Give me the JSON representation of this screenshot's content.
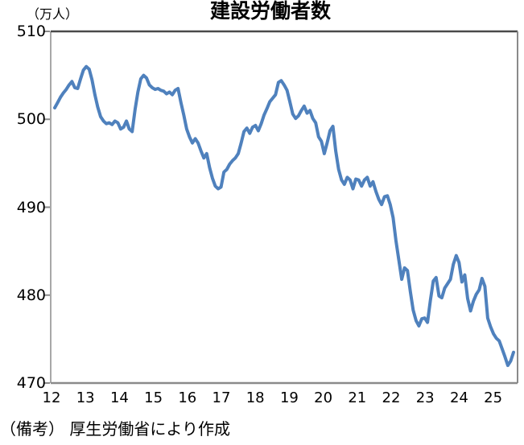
{
  "title": "建設労働者数",
  "y_axis_unit_label": "（万人）",
  "note": "（備考） 厚生労働省により作成",
  "colors": {
    "line": "#4f81bd",
    "axis": "#8a8a8a",
    "axis_left": "#a8a8a8",
    "border_top": "#4a4a4a",
    "text": "#000000"
  },
  "chart_data": {
    "type": "line",
    "title": "建設労働者数",
    "ylabel": "（万人）",
    "xlabel": "",
    "ylim": [
      470,
      510
    ],
    "y_ticks": [
      510,
      500,
      490,
      480,
      470
    ],
    "x_tick_labels": [
      "12",
      "13",
      "14",
      "15",
      "16",
      "17",
      "18",
      "19",
      "20",
      "21",
      "22",
      "23",
      "24",
      "25"
    ],
    "x_start": "2012-01",
    "x_end": "2025-05",
    "frequency": "monthly",
    "grid": false,
    "legend_position": "none",
    "series": [
      {
        "name": "建設労働者数",
        "values": [
          501.3,
          501.9,
          502.5,
          503.0,
          503.4,
          503.9,
          504.3,
          503.6,
          503.5,
          504.6,
          505.6,
          506.0,
          505.7,
          504.5,
          502.8,
          501.4,
          500.3,
          499.8,
          499.5,
          499.6,
          499.4,
          499.8,
          499.6,
          498.9,
          499.1,
          499.8,
          498.9,
          498.6,
          501.1,
          503.1,
          504.6,
          505.0,
          504.7,
          503.9,
          503.6,
          503.4,
          503.5,
          503.3,
          503.2,
          502.9,
          503.1,
          502.8,
          503.3,
          503.5,
          501.9,
          500.5,
          498.9,
          498.0,
          497.3,
          497.8,
          497.3,
          496.4,
          495.6,
          496.1,
          494.5,
          493.3,
          492.4,
          492.1,
          492.3,
          494.0,
          494.3,
          494.9,
          495.3,
          495.6,
          496.1,
          497.3,
          498.6,
          499.0,
          498.4,
          499.1,
          499.3,
          498.7,
          499.5,
          500.5,
          501.2,
          502.0,
          502.4,
          502.8,
          504.2,
          504.4,
          503.9,
          503.3,
          502.0,
          500.6,
          500.1,
          500.4,
          501.0,
          501.5,
          500.7,
          501.0,
          500.1,
          499.6,
          498.0,
          497.5,
          496.1,
          497.3,
          498.7,
          499.2,
          496.4,
          494.3,
          493.1,
          492.6,
          493.4,
          493.1,
          492.1,
          493.2,
          493.1,
          492.4,
          493.1,
          493.4,
          492.4,
          492.9,
          491.8,
          490.9,
          490.3,
          491.2,
          491.3,
          490.3,
          488.8,
          486.2,
          484.0,
          481.8,
          483.1,
          482.8,
          480.4,
          478.3,
          477.1,
          476.5,
          477.3,
          477.4,
          476.9,
          479.4,
          481.6,
          482.0,
          479.9,
          479.7,
          480.8,
          481.3,
          481.8,
          483.5,
          484.5,
          483.7,
          481.5,
          482.3,
          479.6,
          478.2,
          479.3,
          480.1,
          480.6,
          481.9,
          481.0,
          477.4,
          476.4,
          475.6,
          475.1,
          474.8,
          473.9,
          473.0,
          472.0,
          472.5,
          473.5
        ]
      }
    ]
  }
}
